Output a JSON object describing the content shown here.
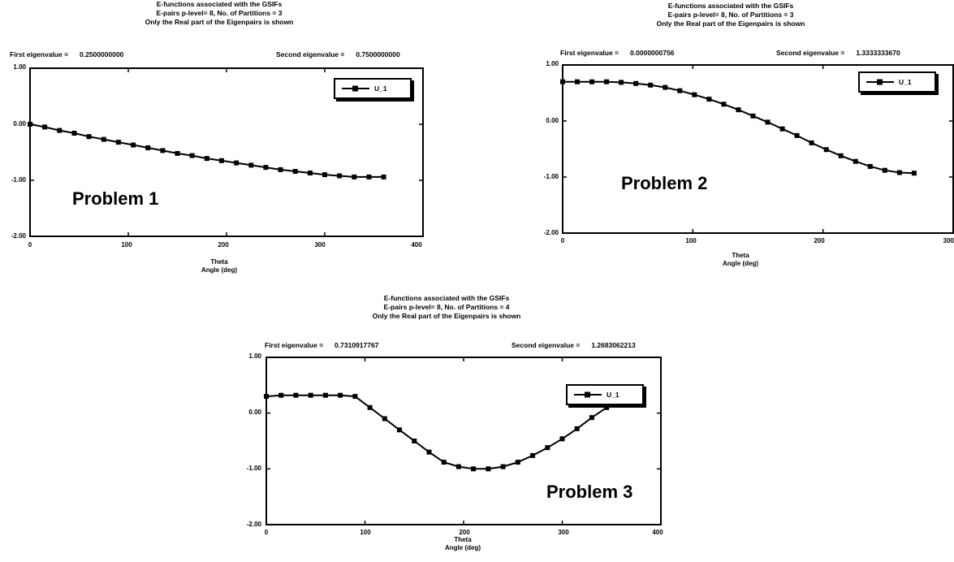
{
  "charts": [
    {
      "titles": [
        "E-functions associated with the GSIFs",
        "E-pairs p-level= 8, No. of Partitions = 3",
        "Only the Real part of the Eigenpairs is shown"
      ],
      "first_eig_label": "First eigenvalue =",
      "first_eig_value": "0.2500000000",
      "second_eig_label": "Second eigenvalue =",
      "second_eig_value": "0.7500000000",
      "xlabel_1": "Theta",
      "xlabel_2": "Angle (deg)",
      "legend": "U_1",
      "problem_label": "Problem 1",
      "yticks": [
        "1.00",
        "0.00",
        "-1.00",
        "-2.00"
      ],
      "xticks": [
        "0",
        "100",
        "200",
        "300",
        "400"
      ]
    },
    {
      "titles": [
        "E-functions associated with the GSIFs",
        "E-pairs p-level= 8, No. of Partitions = 3",
        "Only the Real part of the Eigenpairs is shown"
      ],
      "first_eig_label": "First eigenvalue =",
      "first_eig_value": "0.0000000756",
      "second_eig_label": "Second eigenvalue =",
      "second_eig_value": "1.3333333670",
      "xlabel_1": "Theta",
      "xlabel_2": "Angle (deg)",
      "legend": "U_1",
      "problem_label": "Problem 2",
      "yticks": [
        "1.00",
        "0.00",
        "-1.00",
        "-2.00"
      ],
      "xticks": [
        "0",
        "100",
        "200",
        "300"
      ]
    },
    {
      "titles": [
        "E-functions associated with the GSIFs",
        "E-pairs p-level= 8, No. of Partitions = 4",
        "Only the Real part of the Eigenpairs is shown"
      ],
      "first_eig_label": "First eigenvalue =",
      "first_eig_value": "0.7310917767",
      "second_eig_label": "Second eigenvalue =",
      "second_eig_value": "1.2683062213",
      "xlabel_1": "Theta",
      "xlabel_2": "Angle (deg)",
      "legend": "U_1",
      "problem_label": "Problem 3",
      "yticks": [
        "1.00",
        "0.00",
        "-1.00",
        "-2.00"
      ],
      "xticks": [
        "0",
        "100",
        "200",
        "300",
        "400"
      ]
    }
  ],
  "chart_data": [
    {
      "type": "line",
      "xlim": [
        0,
        400
      ],
      "ylim": [
        -2,
        1
      ],
      "series": [
        {
          "name": "U_1",
          "x": [
            0,
            15,
            30,
            45,
            60,
            75,
            90,
            105,
            120,
            135,
            150,
            165,
            180,
            195,
            210,
            225,
            240,
            255,
            270,
            285,
            300,
            315,
            330,
            345,
            360
          ],
          "y": [
            0.0,
            -0.05,
            -0.11,
            -0.16,
            -0.22,
            -0.27,
            -0.32,
            -0.37,
            -0.42,
            -0.47,
            -0.52,
            -0.56,
            -0.61,
            -0.65,
            -0.69,
            -0.73,
            -0.77,
            -0.81,
            -0.84,
            -0.87,
            -0.9,
            -0.92,
            -0.94,
            -0.94,
            -0.94
          ]
        }
      ]
    },
    {
      "type": "line",
      "xlim": [
        0,
        300
      ],
      "ylim": [
        -2,
        1
      ],
      "series": [
        {
          "name": "U_1",
          "x": [
            0,
            11.25,
            22.5,
            33.75,
            45,
            56.25,
            67.5,
            78.75,
            90,
            101.25,
            112.5,
            123.75,
            135,
            146.25,
            157.5,
            168.75,
            180,
            191.25,
            202.5,
            213.75,
            225,
            236.25,
            247.5,
            258.75,
            270
          ],
          "y": [
            0.7,
            0.7,
            0.7,
            0.7,
            0.69,
            0.67,
            0.64,
            0.6,
            0.54,
            0.47,
            0.39,
            0.3,
            0.2,
            0.09,
            -0.02,
            -0.14,
            -0.26,
            -0.39,
            -0.51,
            -0.62,
            -0.72,
            -0.81,
            -0.88,
            -0.92,
            -0.93
          ]
        }
      ]
    },
    {
      "type": "line",
      "xlim": [
        0,
        400
      ],
      "ylim": [
        -2,
        1
      ],
      "series": [
        {
          "name": "U_1",
          "x": [
            0,
            15,
            30,
            45,
            60,
            75,
            90,
            105,
            120,
            135,
            150,
            165,
            180,
            195,
            210,
            225,
            240,
            255,
            270,
            285,
            300,
            315,
            330,
            345,
            360
          ],
          "y": [
            0.3,
            0.32,
            0.32,
            0.32,
            0.32,
            0.32,
            0.3,
            0.1,
            -0.1,
            -0.3,
            -0.5,
            -0.7,
            -0.88,
            -0.96,
            -1.0,
            -1.0,
            -0.96,
            -0.88,
            -0.76,
            -0.62,
            -0.46,
            -0.28,
            -0.08,
            0.1,
            0.3
          ]
        }
      ]
    }
  ]
}
